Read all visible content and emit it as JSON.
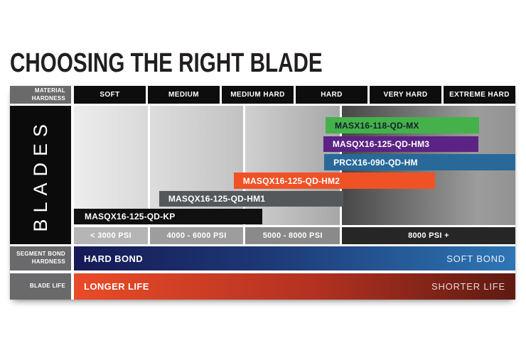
{
  "title": "CHOOSING THE RIGHT BLADE",
  "header": {
    "row_label_lines": [
      "MATERIAL",
      "HARDNESS"
    ],
    "columns": [
      "SOFT",
      "MEDIUM",
      "MEDIUM HARD",
      "HARD",
      "VERY HARD",
      "EXTREME HARD"
    ]
  },
  "blades_label": "BLADES",
  "bars": [
    {
      "label": "MASX16-118-QD-MX",
      "color": "#44b14a",
      "text_color": "#13202b",
      "range": "HARD to EXTREME HARD"
    },
    {
      "label": "MASQX16-125-QD-HM3",
      "color": "#5b2383",
      "text_color": "#ffffff",
      "range": "HARD to EXTREME HARD"
    },
    {
      "label": "PRCX16-090-QD-HM",
      "color": "#28699a",
      "text_color": "#ffffff",
      "range": "HARD to EXTREME HARD"
    },
    {
      "label": "MASQX16-125-QD-HM2",
      "color": "#f05226",
      "text_color": "#ffffff",
      "range": "MEDIUM HARD to VERY HARD"
    },
    {
      "label": "MASQX16-125-QD-HM1",
      "color": "#54575b",
      "text_color": "#ffffff",
      "range": "MEDIUM to HARD"
    },
    {
      "label": "MASQX16-125-QD-KP",
      "color": "#101010",
      "text_color": "#ffffff",
      "range": "SOFT to MEDIUM HARD"
    }
  ],
  "psi": [
    "< 3000 PSI",
    "4000 - 6000 PSI",
    "5000 - 8000 PSI",
    "8000 PSI +"
  ],
  "bond": {
    "row_label_lines": [
      "SEGMENT BOND",
      "HARDNESS"
    ],
    "left": "HARD BOND",
    "right": "SOFT BOND",
    "color_left": "#161a56",
    "color_right": "#2e76b5"
  },
  "life": {
    "row_label_lines": [
      "BLADE LIFE"
    ],
    "left": "LONGER LIFE",
    "right": "SHORTER LIFE",
    "color_left": "#ea4b28",
    "color_right": "#5e1a12"
  },
  "chart_data": {
    "type": "bar",
    "title": "CHOOSING THE RIGHT BLADE",
    "x_axis": {
      "label": "MATERIAL HARDNESS",
      "categories": [
        "SOFT",
        "MEDIUM",
        "MEDIUM HARD",
        "HARD",
        "VERY HARD",
        "EXTREME HARD"
      ]
    },
    "psi_scale": [
      "< 3000 PSI",
      "4000 - 6000 PSI",
      "5000 - 8000 PSI",
      "8000 PSI +"
    ],
    "series": [
      {
        "name": "MASX16-118-QD-MX",
        "color": "#44b14a",
        "hardness_range": "HARD to EXTREME HARD"
      },
      {
        "name": "MASQX16-125-QD-HM3",
        "color": "#5b2383",
        "hardness_range": "HARD to EXTREME HARD"
      },
      {
        "name": "PRCX16-090-QD-HM",
        "color": "#28699a",
        "hardness_range": "HARD to EXTREME HARD"
      },
      {
        "name": "MASQX16-125-QD-HM2",
        "color": "#f05226",
        "hardness_range": "MEDIUM HARD to VERY HARD"
      },
      {
        "name": "MASQX16-125-QD-HM1",
        "color": "#54575b",
        "hardness_range": "MEDIUM to HARD"
      },
      {
        "name": "MASQX16-125-QD-KP",
        "color": "#101010",
        "hardness_range": "SOFT to MEDIUM HARD"
      }
    ],
    "gradient_axes": [
      {
        "name": "SEGMENT BOND HARDNESS",
        "from": "HARD BOND",
        "to": "SOFT BOND"
      },
      {
        "name": "BLADE LIFE",
        "from": "LONGER LIFE",
        "to": "SHORTER LIFE"
      }
    ],
    "legend_position": "none",
    "grid": false
  }
}
